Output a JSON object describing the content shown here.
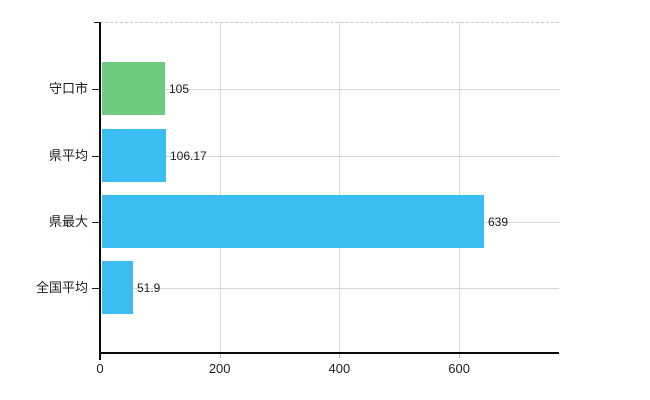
{
  "chart_data": {
    "type": "bar",
    "orientation": "horizontal",
    "title": "",
    "xlabel": "",
    "ylabel": "",
    "categories": [
      "守口市",
      "県平均",
      "県最大",
      "全国平均"
    ],
    "values": [
      105,
      106.17,
      639,
      51.9
    ],
    "value_labels": [
      "105",
      "106.17",
      "639",
      "51.9"
    ],
    "series": [
      {
        "name": "",
        "values": [
          105,
          106.17,
          639,
          51.9
        ]
      }
    ],
    "bar_colors": [
      "#6fcb80",
      "#3bbdf1",
      "#3bbdf1",
      "#3bbdf1"
    ],
    "x_ticks": [
      0,
      200,
      400,
      600
    ],
    "x_tick_labels": [
      "0",
      "200",
      "400",
      "600"
    ],
    "xlim": [
      0,
      767
    ],
    "grid": true,
    "grid_style": "horizontal lines at each category center, vertical lines at x ticks",
    "legend": false
  },
  "colors": {
    "bar_highlight_green": "#6fcb80",
    "bar_blue": "#3bbdf1",
    "gridline": "#d5d9d5",
    "plot_top_border_dashed": "#c9c6c9",
    "axis": "#0a0a0a",
    "text": "#1c1c1c",
    "background": "#ffffff"
  }
}
